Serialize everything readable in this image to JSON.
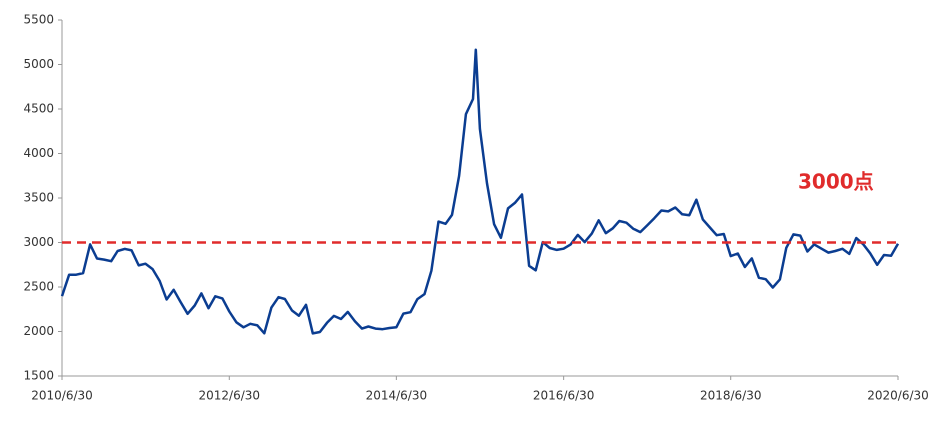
{
  "chart_data": {
    "type": "line",
    "color": "#0b3d91",
    "x": [
      "2010/6/30",
      "2010/7/31",
      "2010/8/31",
      "2010/9/30",
      "2010/10/31",
      "2010/11/30",
      "2010/12/31",
      "2011/1/31",
      "2011/2/28",
      "2011/3/31",
      "2011/4/30",
      "2011/5/31",
      "2011/6/30",
      "2011/7/31",
      "2011/8/31",
      "2011/9/30",
      "2011/10/31",
      "2011/11/30",
      "2011/12/31",
      "2012/1/31",
      "2012/2/29",
      "2012/3/31",
      "2012/4/30",
      "2012/5/31",
      "2012/6/30",
      "2012/7/31",
      "2012/8/31",
      "2012/9/30",
      "2012/10/31",
      "2012/11/30",
      "2012/12/31",
      "2013/1/31",
      "2013/2/28",
      "2013/3/31",
      "2013/4/30",
      "2013/5/31",
      "2013/6/30",
      "2013/7/31",
      "2013/8/31",
      "2013/9/30",
      "2013/10/31",
      "2013/11/30",
      "2013/12/31",
      "2014/1/31",
      "2014/2/28",
      "2014/3/31",
      "2014/4/30",
      "2014/5/31",
      "2014/6/30",
      "2014/7/31",
      "2014/8/31",
      "2014/9/30",
      "2014/10/31",
      "2014/11/30",
      "2014/12/31",
      "2015/1/31",
      "2015/2/28",
      "2015/3/31",
      "2015/4/30",
      "2015/5/31",
      "2015/6/12",
      "2015/6/30",
      "2015/7/31",
      "2015/8/31",
      "2015/9/30",
      "2015/10/31",
      "2015/11/30",
      "2015/12/31",
      "2016/1/31",
      "2016/2/29",
      "2016/3/31",
      "2016/4/30",
      "2016/5/31",
      "2016/6/30",
      "2016/7/31",
      "2016/8/31",
      "2016/9/30",
      "2016/10/31",
      "2016/11/30",
      "2016/12/31",
      "2017/1/31",
      "2017/2/28",
      "2017/3/31",
      "2017/4/30",
      "2017/5/31",
      "2017/6/30",
      "2017/7/31",
      "2017/8/31",
      "2017/9/30",
      "2017/10/31",
      "2017/11/30",
      "2017/12/31",
      "2018/1/31",
      "2018/2/28",
      "2018/3/31",
      "2018/4/30",
      "2018/5/31",
      "2018/6/30",
      "2018/7/31",
      "2018/8/31",
      "2018/9/30",
      "2018/10/31",
      "2018/11/30",
      "2018/12/31",
      "2019/1/31",
      "2019/2/28",
      "2019/3/31",
      "2019/4/30",
      "2019/5/31",
      "2019/6/30",
      "2019/7/31",
      "2019/8/31",
      "2019/9/30",
      "2019/10/31",
      "2019/11/30",
      "2019/12/31",
      "2020/1/31",
      "2020/2/29",
      "2020/3/31",
      "2020/4/30",
      "2020/5/31",
      "2020/6/30"
    ],
    "values": [
      2398,
      2637,
      2638,
      2656,
      2979,
      2820,
      2808,
      2790,
      2905,
      2928,
      2911,
      2743,
      2762,
      2701,
      2567,
      2359,
      2468,
      2333,
      2199,
      2292,
      2428,
      2262,
      2396,
      2372,
      2225,
      2103,
      2047,
      2086,
      2069,
      1980,
      2269,
      2385,
      2365,
      2236,
      2177,
      2300,
      1979,
      1994,
      2098,
      2175,
      2141,
      2220,
      2116,
      2033,
      2056,
      2033,
      2026,
      2039,
      2048,
      2201,
      2217,
      2364,
      2420,
      2683,
      3235,
      3210,
      3310,
      3748,
      4442,
      4612,
      5166,
      4277,
      3664,
      3206,
      3053,
      3383,
      3445,
      3539,
      2738,
      2688,
      3004,
      2938,
      2917,
      2930,
      2979,
      3085,
      3005,
      3100,
      3250,
      3104,
      3159,
      3242,
      3223,
      3155,
      3117,
      3192,
      3273,
      3360,
      3349,
      3393,
      3317,
      3307,
      3481,
      3259,
      3169,
      3082,
      3095,
      2847,
      2876,
      2725,
      2821,
      2603,
      2588,
      2494,
      2585,
      2941,
      3091,
      3078,
      2899,
      2979,
      2932,
      2886,
      2905,
      2929,
      2872,
      3050,
      2977,
      2880,
      2750,
      2860,
      2852,
      2985
    ],
    "xlim": [
      "2010/6/30",
      "2020/6/30"
    ],
    "xticks": [
      "2010/6/30",
      "2012/6/30",
      "2014/6/30",
      "2016/6/30",
      "2018/6/30",
      "2020/6/30"
    ],
    "ylim": [
      1500,
      5500
    ],
    "yticks": [
      1500,
      2000,
      2500,
      3000,
      3500,
      4000,
      4500,
      5000,
      5500
    ],
    "reference_line": {
      "value": 3000,
      "color": "#e02b2b",
      "style": "dashed"
    },
    "annotation": "3000点"
  }
}
